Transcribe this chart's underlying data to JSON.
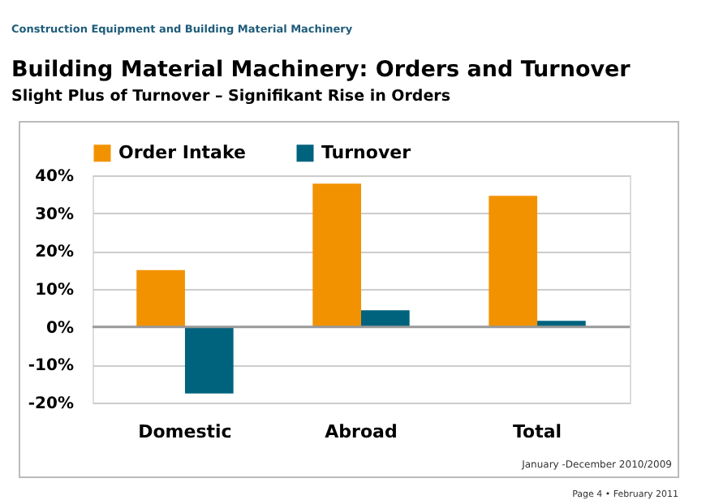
{
  "chart_data": {
    "type": "bar",
    "title": "Building Material Machinery: Orders and Turnover",
    "subtitle": "Slight Plus of Turnover – Signifikant Rise in Orders",
    "categories": [
      "Domestic",
      "Abroad",
      "Total"
    ],
    "series": [
      {
        "name": "Order Intake",
        "color": "#f39200",
        "values": [
          15.0,
          37.8,
          34.6
        ]
      },
      {
        "name": "Turnover",
        "color": "#00637e",
        "values": [
          -17.6,
          4.4,
          1.6
        ]
      }
    ],
    "ylim": [
      -20,
      40
    ],
    "yticks": [
      {
        "value": -20,
        "label": "-20%"
      },
      {
        "value": -10,
        "label": "-10%"
      },
      {
        "value": 0,
        "label": "0%"
      },
      {
        "value": 10,
        "label": "10%"
      },
      {
        "value": 20,
        "label": "20%"
      },
      {
        "value": 30,
        "label": "30%"
      },
      {
        "value": 40,
        "label": "40%"
      }
    ],
    "grid": "y",
    "legend": "top",
    "annotations": [
      "Construction Equipment and Building Material Machinery",
      "January -December 2010/2009",
      "Page 4 • February 2011"
    ]
  }
}
